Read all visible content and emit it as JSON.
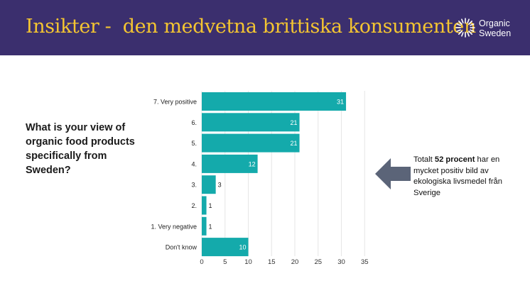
{
  "header": {
    "title": "Insikter -  den medvetna brittiska konsumenten",
    "logo_line1": "Organic",
    "logo_line2": "Sweden",
    "background": "#3b2f6e",
    "title_color": "#f4c531"
  },
  "question": "What is your view of organic food products specifically from Sweden?",
  "callout": {
    "prefix": "Totalt ",
    "bold": "52 procent",
    "suffix": " har en mycket positiv bild av ekologiska livsmedel från Sverige",
    "arrow_color": "#5b6478",
    "arrow_icon": "arrow-left-icon"
  },
  "chart_data": {
    "type": "bar",
    "orientation": "horizontal",
    "categories": [
      "7. Very positive",
      "6.",
      "5.",
      "4.",
      "3.",
      "2.",
      "1. Very negative",
      "Don't know"
    ],
    "values": [
      31,
      21,
      21,
      12,
      3,
      1,
      1,
      10
    ],
    "xlim": [
      0,
      35
    ],
    "xticks": [
      0,
      5,
      10,
      15,
      20,
      25,
      30,
      35
    ],
    "grid": true,
    "bar_color": "#14aaab",
    "title": "",
    "xlabel": "",
    "ylabel": ""
  }
}
